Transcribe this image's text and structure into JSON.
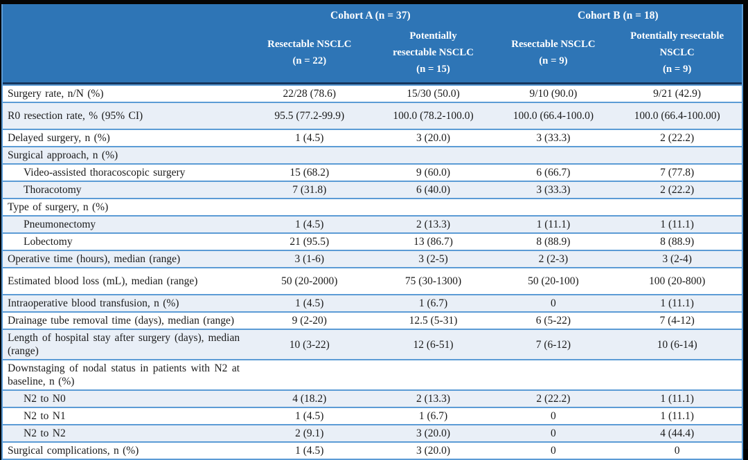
{
  "colors": {
    "header_bg": "#2E75B6",
    "header_text": "#FFFFFF",
    "stripe_bg": "#E9EFF7",
    "row_border": "#5B9BD5",
    "header_divider": "#17365D",
    "outer_frame": "#000000",
    "body_text": "#1A1A1A"
  },
  "table": {
    "header": {
      "corner": "",
      "groups": [
        "Cohort A (n = 37)",
        "Cohort B (n = 18)"
      ],
      "columns": [
        "Resectable NSCLC\n(n = 22)",
        "Potentially\nresectable NSCLC\n(n = 15)",
        "Resectable NSCLC\n(n = 9)",
        "Potentially resectable\nNSCLC\n(n = 9)"
      ]
    },
    "rows": [
      {
        "label": "Surgery rate, n/N (%)",
        "indent": false,
        "values": [
          "22/28 (78.6)",
          "15/30 (50.0)",
          "9/10 (90.0)",
          "9/21 (42.9)"
        ]
      },
      {
        "label": "R0 resection rate, % (95% CI)",
        "indent": false,
        "values": [
          "95.5 (77.2-99.9)",
          "100.0 (78.2-100.0)",
          "100.0 (66.4-100.0)",
          "100.0 (66.4-100.00)"
        ]
      },
      {
        "label": "Delayed surgery, n (%)",
        "indent": false,
        "values": [
          "1 (4.5)",
          "3 (20.0)",
          "3 (33.3)",
          "2 (22.2)"
        ]
      },
      {
        "label": "Surgical approach, n (%)",
        "indent": false,
        "values": [
          "",
          "",
          "",
          ""
        ]
      },
      {
        "label": "Video-assisted thoracoscopic surgery",
        "indent": true,
        "values": [
          "15 (68.2)",
          "9 (60.0)",
          "6 (66.7)",
          "7 (77.8)"
        ]
      },
      {
        "label": "Thoracotomy",
        "indent": true,
        "values": [
          "7 (31.8)",
          "6 (40.0)",
          "3 (33.3)",
          "2 (22.2)"
        ]
      },
      {
        "label": "Type of surgery, n (%)",
        "indent": false,
        "values": [
          "",
          "",
          "",
          ""
        ]
      },
      {
        "label": "Pneumonectomy",
        "indent": true,
        "values": [
          "1 (4.5)",
          "2 (13.3)",
          "1 (11.1)",
          "1 (11.1)"
        ]
      },
      {
        "label": "Lobectomy",
        "indent": true,
        "values": [
          "21 (95.5)",
          "13 (86.7)",
          "8 (88.9)",
          "8 (88.9)"
        ]
      },
      {
        "label": "Operative time (hours), median (range)",
        "indent": false,
        "values": [
          "3 (1-6)",
          "3 (2-5)",
          "2 (2-3)",
          "3 (2-4)"
        ]
      },
      {
        "label": "Estimated blood loss (mL), median (range)",
        "indent": false,
        "values": [
          "50 (20-2000)",
          "75 (30-1300)",
          "50 (20-100)",
          "100 (20-800)"
        ]
      },
      {
        "label": "Intraoperative blood transfusion, n (%)",
        "indent": false,
        "values": [
          "1 (4.5)",
          "1 (6.7)",
          "0",
          "1 (11.1)"
        ]
      },
      {
        "label": "Drainage tube removal time (days), median (range)",
        "indent": false,
        "values": [
          "9 (2-20)",
          "12.5 (5-31)",
          "6 (5-22)",
          "7 (4-12)"
        ]
      },
      {
        "label": "Length of hospital stay after surgery (days), median (range)",
        "indent": false,
        "values": [
          "10 (3-22)",
          "12 (6-51)",
          "7 (6-12)",
          "10 (6-14)"
        ]
      },
      {
        "label": "Downstaging of nodal status in patients with N2 at baseline, n (%)",
        "indent": false,
        "values": [
          "",
          "",
          "",
          ""
        ]
      },
      {
        "label": "N2 to N0",
        "indent": true,
        "values": [
          "4 (18.2)",
          "2 (13.3)",
          "2 (22.2)",
          "1 (11.1)"
        ]
      },
      {
        "label": "N2 to N1",
        "indent": true,
        "values": [
          "1 (4.5)",
          "1 (6.7)",
          "0",
          "1 (11.1)"
        ]
      },
      {
        "label": "N2 to N2",
        "indent": true,
        "values": [
          "2 (9.1)",
          "3 (20.0)",
          "0",
          "4 (44.4)"
        ]
      },
      {
        "label": "Surgical complications, n (%)",
        "indent": false,
        "values": [
          "1 (4.5)",
          "3 (20.0)",
          "0",
          "0"
        ]
      }
    ]
  }
}
